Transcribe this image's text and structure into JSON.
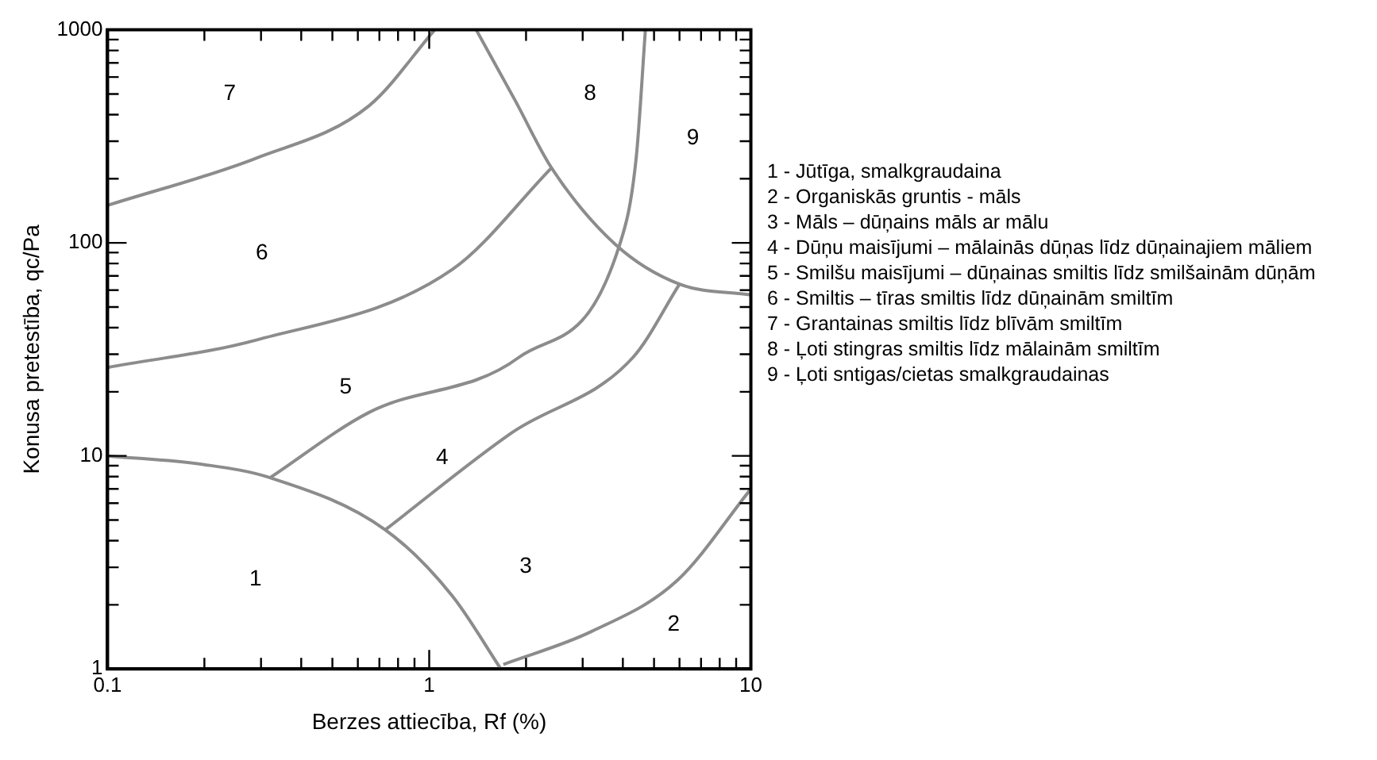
{
  "chart_data": {
    "type": "line",
    "xlabel": "Berzes attiecība, Rf (%)",
    "ylabel": "Konusa pretestība, qc/Pa",
    "log": "xy",
    "grid": false,
    "legend": false,
    "marker": "none",
    "line_style": "solid",
    "xlim": [
      0.1,
      10
    ],
    "ylim": [
      1,
      1000
    ],
    "xticks": [
      0.1,
      {
        "value": 0.2,
        "label": null
      },
      {
        "value": 0.3,
        "label": null
      },
      {
        "value": 0.4,
        "label": null
      },
      {
        "value": 0.5,
        "label": null
      },
      {
        "value": 0.6,
        "label": null
      },
      {
        "value": 0.7,
        "label": null
      },
      {
        "value": 0.8,
        "label": null
      },
      {
        "value": 0.9,
        "label": null
      },
      1,
      {
        "value": 2,
        "label": null
      },
      {
        "value": 3,
        "label": null
      },
      {
        "value": 4,
        "label": null
      },
      {
        "value": 5,
        "label": null
      },
      {
        "value": 6,
        "label": null
      },
      {
        "value": 7,
        "label": null
      },
      {
        "value": 8,
        "label": null
      },
      {
        "value": 9,
        "label": null
      },
      10
    ],
    "yticks": [
      1,
      {
        "value": 2,
        "label": null
      },
      {
        "value": 3,
        "label": null
      },
      {
        "value": 4,
        "label": null
      },
      {
        "value": 5,
        "label": null
      },
      {
        "value": 6,
        "label": null
      },
      {
        "value": 7,
        "label": null
      },
      {
        "value": 8,
        "label": null
      },
      {
        "value": 9,
        "label": null
      },
      10,
      {
        "value": 20,
        "label": null
      },
      {
        "value": 30,
        "label": null
      },
      {
        "value": 40,
        "label": null
      },
      {
        "value": 50,
        "label": null
      },
      {
        "value": 60,
        "label": null
      },
      {
        "value": 70,
        "label": null
      },
      {
        "value": 80,
        "label": null
      },
      {
        "value": 90,
        "label": null
      },
      100,
      {
        "value": 200,
        "label": null
      },
      {
        "value": 300,
        "label": null
      },
      {
        "value": 400,
        "label": null
      },
      {
        "value": 500,
        "label": null
      },
      {
        "value": 600,
        "label": null
      },
      {
        "value": 700,
        "label": null
      },
      {
        "value": 800,
        "label": null
      },
      {
        "value": 900,
        "label": null
      },
      1000
    ],
    "series": [
      {
        "color": "#8c8c8c",
        "x": [
          0.1,
          0.2,
          0.32,
          0.73,
          1.18,
          1.67
        ],
        "values": [
          10,
          9.1,
          7.9,
          4.5,
          2.2,
          1
        ]
      },
      {
        "color": "#8c8c8c",
        "x": [
          1.7,
          3.2,
          5.9,
          10
        ],
        "values": [
          1.05,
          1.5,
          2.6,
          7
        ]
      },
      {
        "color": "#8c8c8c",
        "x": [
          0.73,
          1.8,
          4.3,
          6
        ],
        "values": [
          4.5,
          12.8,
          29,
          64
        ]
      },
      {
        "color": "#8c8c8c",
        "x": [
          0.32,
          0.65,
          1.9,
          3.9,
          4.4,
          4.7
        ],
        "values": [
          7.9,
          16,
          29,
          97,
          250,
          1000
        ]
      },
      {
        "color": "#8c8c8c",
        "x": [
          0.1,
          0.29,
          1.18,
          2.4
        ],
        "values": [
          26,
          35,
          75,
          225
        ]
      },
      {
        "color": "#8c8c8c",
        "x": [
          0.1,
          0.29,
          0.65,
          1.04
        ],
        "values": [
          150,
          250,
          440,
          1000
        ]
      },
      {
        "color": "#8c8c8c",
        "x": [
          1.4,
          1.85,
          2.4,
          3.8,
          6,
          10
        ],
        "values": [
          1000,
          466,
          225,
          98,
          64,
          57
        ]
      }
    ],
    "annotations": [
      "1",
      "2",
      "3",
      "4",
      "5",
      "6",
      "7",
      "8",
      "9",
      "1 - Jūtīga, smalkgraudaina",
      "2 - Organiskās gruntis - māls",
      "3 - Māls – dūņains māls ar mālu",
      "4 - Dūņu maisījumi – mālainās dūņas līdz dūņainajiem māliem",
      "5 - Smilšu maisījumi – dūņainas smiltis līdz smilšainām dūņām",
      "6 - Smiltis – tīras smiltis līdz dūņainām smiltīm",
      "7 - Grantainas smiltis līdz blīvām smiltīm",
      "8 - Ļoti stingras smiltis līdz mālainām smiltīm",
      "9 - Ļoti sntigas/cietas smalkgraudainas"
    ]
  }
}
